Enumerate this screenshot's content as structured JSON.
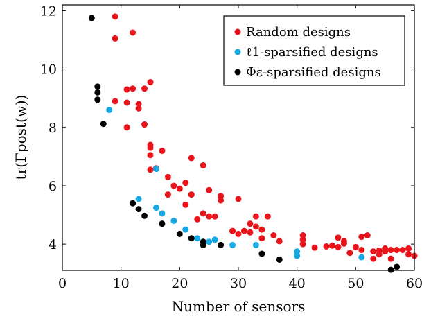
{
  "chart_data": {
    "type": "scatter",
    "xlabel": "Number of sensors",
    "ylabel": "tr(Γpost(w))",
    "xlim": [
      0,
      60
    ],
    "ylim": [
      3.1,
      12.2
    ],
    "xticks": [
      "0",
      "10",
      "20",
      "30",
      "40",
      "50",
      "60"
    ],
    "yticks": [
      "4",
      "6",
      "8",
      "10",
      "12"
    ],
    "grid": false,
    "legend_position": "top-right",
    "series": [
      {
        "name": "Random designs",
        "color": "#e8141b",
        "points": [
          [
            9,
            11.8
          ],
          [
            12,
            11.25
          ],
          [
            9,
            11.05
          ],
          [
            11,
            9.3
          ],
          [
            12,
            9.33
          ],
          [
            14,
            9.33
          ],
          [
            15,
            9.55
          ],
          [
            9,
            8.9
          ],
          [
            11,
            8.85
          ],
          [
            13,
            8.8
          ],
          [
            13,
            8.65
          ],
          [
            11,
            8.0
          ],
          [
            14,
            8.1
          ],
          [
            15,
            7.4
          ],
          [
            15,
            7.3
          ],
          [
            17,
            7.2
          ],
          [
            15,
            7.05
          ],
          [
            18,
            6.3
          ],
          [
            15,
            6.55
          ],
          [
            16,
            6.6
          ],
          [
            22,
            6.95
          ],
          [
            24,
            6.7
          ],
          [
            19,
            6.0
          ],
          [
            20,
            5.9
          ],
          [
            21,
            6.1
          ],
          [
            22,
            5.7
          ],
          [
            18,
            5.7
          ],
          [
            21,
            5.35
          ],
          [
            25,
            5.85
          ],
          [
            27,
            5.65
          ],
          [
            27,
            5.5
          ],
          [
            30,
            5.55
          ],
          [
            24,
            5.05
          ],
          [
            25,
            4.95
          ],
          [
            26,
            4.95
          ],
          [
            23,
            4.85
          ],
          [
            29,
            4.45
          ],
          [
            30,
            4.35
          ],
          [
            31,
            4.45
          ],
          [
            32,
            4.7
          ],
          [
            32,
            4.4
          ],
          [
            33,
            4.95
          ],
          [
            33,
            4.6
          ],
          [
            34,
            4.5
          ],
          [
            34,
            4.2
          ],
          [
            35,
            4.95
          ],
          [
            36,
            4.3
          ],
          [
            37,
            4.1
          ],
          [
            41,
            4.3
          ],
          [
            41,
            4.15
          ],
          [
            41,
            4.0
          ],
          [
            43,
            3.88
          ],
          [
            45,
            3.92
          ],
          [
            46,
            3.95
          ],
          [
            47,
            3.9
          ],
          [
            47,
            4.22
          ],
          [
            48,
            4.02
          ],
          [
            48,
            4.1
          ],
          [
            49,
            3.7
          ],
          [
            50,
            3.9
          ],
          [
            51,
            3.8
          ],
          [
            51,
            4.25
          ],
          [
            52,
            4.3
          ],
          [
            53,
            3.75
          ],
          [
            53,
            3.5
          ],
          [
            54,
            3.78
          ],
          [
            54,
            3.65
          ],
          [
            55,
            3.75
          ],
          [
            55,
            3.85
          ],
          [
            56,
            3.8
          ],
          [
            56,
            3.5
          ],
          [
            57,
            3.8
          ],
          [
            58,
            3.8
          ],
          [
            59,
            3.85
          ],
          [
            59,
            3.65
          ],
          [
            60,
            3.6
          ]
        ]
      },
      {
        "name": "ℓ1-sparsified designs",
        "color": "#15a8e2",
        "points": [
          [
            8,
            8.6
          ],
          [
            16,
            6.58
          ],
          [
            13,
            5.55
          ],
          [
            16,
            5.25
          ],
          [
            17,
            5.05
          ],
          [
            19,
            4.8
          ],
          [
            21,
            4.5
          ],
          [
            23,
            4.2
          ],
          [
            25,
            4.08
          ],
          [
            26,
            4.15
          ],
          [
            29,
            3.97
          ],
          [
            33,
            3.97
          ],
          [
            40,
            3.75
          ],
          [
            40,
            3.6
          ],
          [
            51,
            3.55
          ]
        ]
      },
      {
        "name": "Φε-sparsified designs",
        "color": "#000000",
        "points": [
          [
            5,
            11.75
          ],
          [
            6,
            9.4
          ],
          [
            6,
            9.2
          ],
          [
            6,
            8.95
          ],
          [
            7,
            8.12
          ],
          [
            12,
            5.4
          ],
          [
            13,
            5.2
          ],
          [
            14,
            4.97
          ],
          [
            17,
            4.7
          ],
          [
            20,
            4.35
          ],
          [
            22,
            4.2
          ],
          [
            24,
            4.08
          ],
          [
            24,
            3.97
          ],
          [
            27,
            3.97
          ],
          [
            34,
            3.67
          ],
          [
            37,
            3.47
          ],
          [
            56,
            3.12
          ],
          [
            57,
            3.22
          ]
        ]
      }
    ]
  }
}
